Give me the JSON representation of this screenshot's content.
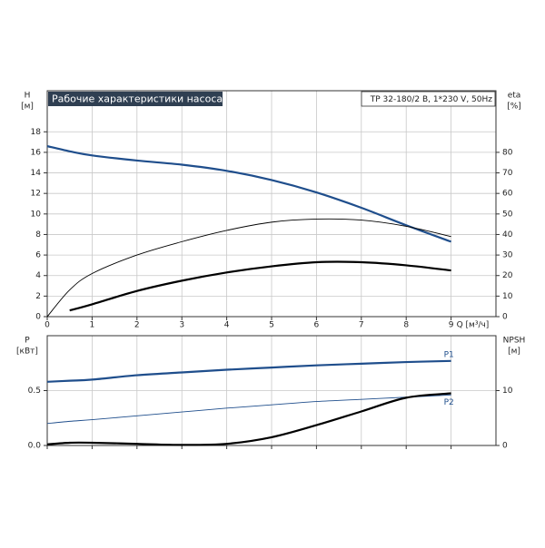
{
  "chart_data": [
    {
      "type": "line",
      "title": "Рабочие характеристики насоса",
      "subtitle": "TP 32-180/2 B, 1*230 V, 50Hz",
      "xlabel": "Q [м³/ч]",
      "ylabel": "H",
      "yunit": "[м]",
      "y2label": "eta",
      "y2unit": "[%]",
      "x": [
        0,
        0.5,
        1,
        2,
        3,
        4,
        5,
        6,
        7,
        8,
        9
      ],
      "xlim": [
        0,
        10
      ],
      "xticks": [
        0,
        1,
        2,
        3,
        4,
        5,
        6,
        7,
        8,
        9
      ],
      "ylim": [
        0,
        22
      ],
      "yticks": [
        0,
        2,
        4,
        6,
        8,
        10,
        12,
        14,
        16,
        18
      ],
      "y2lim": [
        0,
        110
      ],
      "y2ticks": [
        0,
        10,
        20,
        30,
        40,
        50,
        60,
        70,
        80
      ],
      "grid": true,
      "series": [
        {
          "color": "#1f4e8c",
          "width": 2.2,
          "values": [
            16.6,
            16.1,
            15.7,
            15.2,
            14.8,
            14.2,
            13.3,
            12.1,
            10.6,
            8.9,
            7.3
          ]
        },
        {
          "color": "#000000",
          "width": 0.9,
          "axis": "y2",
          "values": [
            0,
            13,
            21,
            30,
            36.5,
            42,
            46,
            47.5,
            47,
            44,
            39
          ]
        },
        {
          "color": "#000000",
          "width": 2.2,
          "axis": "y2",
          "values": [
            null,
            3,
            6,
            12.5,
            17.5,
            21.5,
            24.5,
            26.5,
            26.5,
            25,
            22.5
          ]
        }
      ]
    },
    {
      "type": "line",
      "ylabel": "P",
      "yunit": "[кВт]",
      "y2label": "NPSH",
      "y2unit": "[м]",
      "x": [
        0,
        0.5,
        1,
        2,
        3,
        4,
        5,
        6,
        7,
        8,
        9
      ],
      "xlim": [
        0,
        10
      ],
      "xticks": [
        0,
        1,
        2,
        3,
        4,
        5,
        6,
        7,
        8,
        9
      ],
      "ylim": [
        0,
        1
      ],
      "yticks": [
        {
          "value": 0,
          "label": "0.0"
        },
        0.5
      ],
      "y2lim": [
        0,
        20
      ],
      "y2ticks": [
        0,
        10
      ],
      "grid": true,
      "series": [
        {
          "name": "P1",
          "color": "#1f4e8c",
          "width": 2.2,
          "values": [
            0.58,
            0.59,
            0.6,
            0.64,
            0.665,
            0.69,
            0.71,
            0.73,
            0.745,
            0.76,
            0.77
          ]
        },
        {
          "name": "P2",
          "color": "#1f4e8c",
          "width": 0.9,
          "values": [
            0.2,
            0.22,
            0.235,
            0.27,
            0.305,
            0.34,
            0.37,
            0.4,
            0.42,
            0.44,
            0.46
          ]
        },
        {
          "color": "#000000",
          "width": 2.2,
          "axis": "y2",
          "values": [
            0.2,
            0.5,
            0.5,
            0.3,
            0.1,
            0.3,
            1.5,
            3.7,
            6.2,
            8.7,
            9.5
          ]
        }
      ]
    }
  ]
}
